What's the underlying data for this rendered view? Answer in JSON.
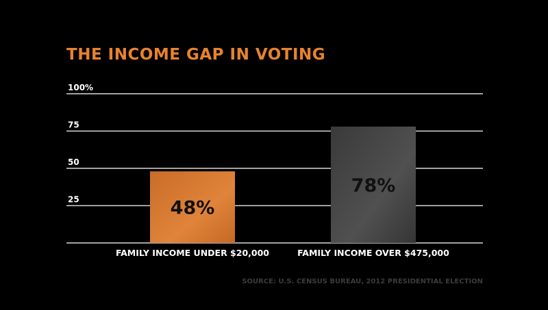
{
  "colors": {
    "background": "#000000",
    "title": "#e8832e",
    "grid": "#d9d9d9",
    "source": "#3c3c3c"
  },
  "chart_data": {
    "type": "bar",
    "title": "THE INCOME GAP IN VOTING",
    "categories": [
      "FAMILY INCOME UNDER $20,000",
      "FAMILY INCOME OVER $475,000"
    ],
    "values": [
      48,
      78
    ],
    "data_labels": [
      "48%",
      "78%"
    ],
    "bar_colors": [
      "#d97a31",
      "#474747"
    ],
    "ylim": [
      0,
      100
    ],
    "yticks": [
      25,
      50,
      75,
      100
    ],
    "ytick_labels": [
      "25",
      "50",
      "75",
      "100%"
    ],
    "grid": true,
    "source": "SOURCE: U.S. CENSUS BUREAU, 2012 PRESIDENTIAL ELECTION"
  }
}
